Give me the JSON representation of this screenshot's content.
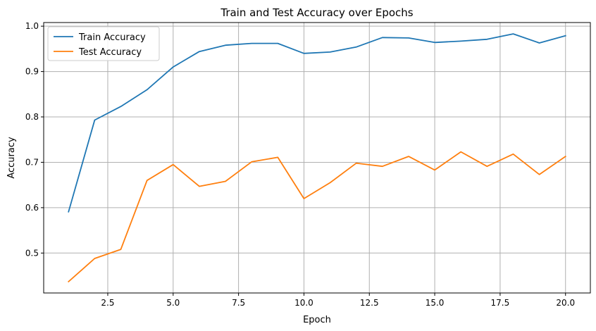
{
  "chart_data": {
    "type": "line",
    "title": "Train and Test Accuracy over Epochs",
    "xlabel": "Epoch",
    "ylabel": "Accuracy",
    "xlim": [
      0.05,
      20.95
    ],
    "ylim": [
      0.412,
      1.008
    ],
    "xticks": [
      2.5,
      5.0,
      7.5,
      10.0,
      12.5,
      15.0,
      17.5,
      20.0
    ],
    "xtick_labels": [
      "2.5",
      "5.0",
      "7.5",
      "10.0",
      "12.5",
      "15.0",
      "17.5",
      "20.0"
    ],
    "yticks": [
      0.5,
      0.6,
      0.7,
      0.8,
      0.9,
      1.0
    ],
    "ytick_labels": [
      "0.5",
      "0.6",
      "0.7",
      "0.8",
      "0.9",
      "1.0"
    ],
    "grid": true,
    "legend_position": "top-left",
    "x": [
      1,
      2,
      3,
      4,
      5,
      6,
      7,
      8,
      9,
      10,
      11,
      12,
      13,
      14,
      15,
      16,
      17,
      18,
      19,
      20
    ],
    "series": [
      {
        "name": "Train Accuracy",
        "color": "#1f77b4",
        "values": [
          0.591,
          0.793,
          0.823,
          0.86,
          0.91,
          0.944,
          0.958,
          0.962,
          0.962,
          0.94,
          0.943,
          0.954,
          0.975,
          0.974,
          0.964,
          0.967,
          0.971,
          0.983,
          0.963,
          0.979
        ]
      },
      {
        "name": "Test Accuracy",
        "color": "#ff7f0e",
        "values": [
          0.437,
          0.488,
          0.508,
          0.66,
          0.695,
          0.647,
          0.658,
          0.701,
          0.711,
          0.62,
          0.655,
          0.698,
          0.691,
          0.713,
          0.683,
          0.723,
          0.691,
          0.718,
          0.673,
          0.713
        ]
      }
    ]
  }
}
